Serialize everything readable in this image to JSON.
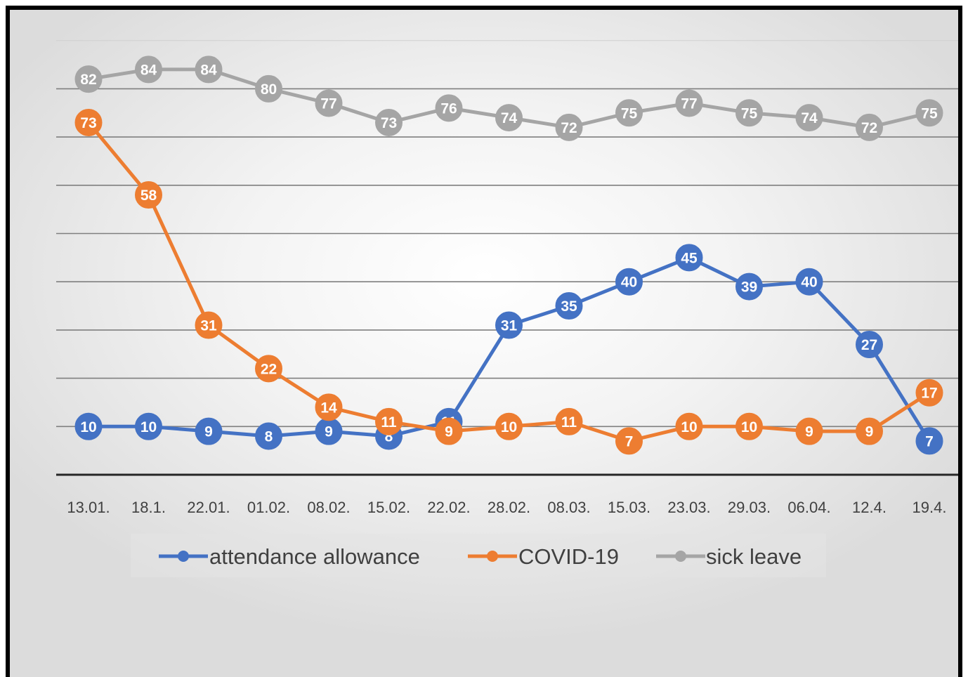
{
  "chart_data": {
    "type": "line",
    "title": "",
    "xlabel": "",
    "ylabel": "",
    "categories": [
      "13.01.",
      "18.1.",
      "22.01.",
      "01.02.",
      "08.02.",
      "15.02.",
      "22.02.",
      "28.02.",
      "08.03.",
      "15.03.",
      "23.03.",
      "29.03.",
      "06.04.",
      "12.4.",
      "19.4."
    ],
    "series": [
      {
        "name": "attendance allowance",
        "color": "#4472C4",
        "values": [
          10,
          10,
          9,
          8,
          9,
          8,
          11,
          31,
          35,
          40,
          45,
          39,
          40,
          27,
          7
        ]
      },
      {
        "name": "COVID-19",
        "color": "#ED7D31",
        "values": [
          73,
          58,
          31,
          22,
          14,
          11,
          9,
          10,
          11,
          7,
          10,
          10,
          9,
          9,
          17
        ]
      },
      {
        "name": "sick leave",
        "color": "#A5A5A5",
        "values": [
          82,
          84,
          84,
          80,
          77,
          73,
          76,
          74,
          72,
          75,
          77,
          75,
          74,
          72,
          75
        ]
      }
    ],
    "ylim": [
      0,
      90
    ],
    "grid": true,
    "y_axis_labels_shown": false,
    "data_labels": true,
    "legend_position": "bottom"
  }
}
